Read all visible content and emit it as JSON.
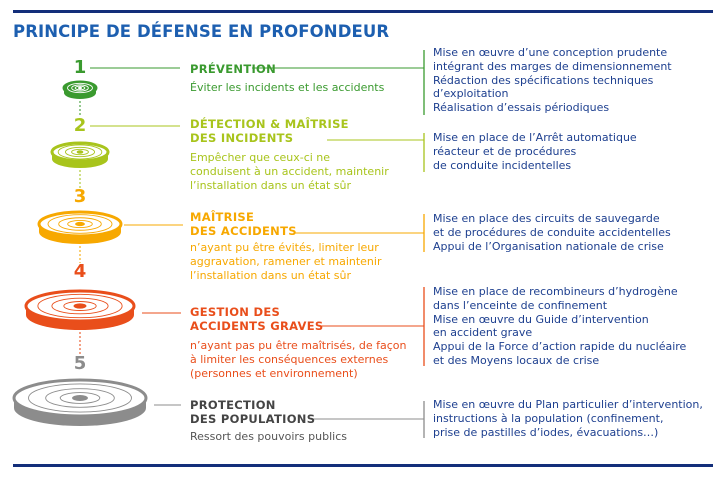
{
  "title": "PRINCIPE DE DÉFENSE EN PROFONDEUR",
  "levels": [
    {
      "number": "1",
      "color": "#3a9a2f",
      "title_lines": [
        "PRÉVENTION"
      ],
      "description_lines": [
        "Éviter les incidents et les accidents"
      ],
      "desc_color": "#3a9a2f",
      "measures": [
        "Mise en œuvre d’une conception prudente",
        "intégrant des marges de dimensionnement",
        "Rédaction des spécifications techniques",
        "d’exploitation",
        "Réalisation d’essais périodiques"
      ]
    },
    {
      "number": "2",
      "color": "#a8c41c",
      "title_lines": [
        "DÉTECTION & MAÎTRISE",
        "DES INCIDENTS"
      ],
      "description_lines": [
        "Empêcher que ceux-ci ne",
        "conduisent à un accident, maintenir",
        "l’installation dans un état sûr"
      ],
      "desc_color": "#a8c41c",
      "measures": [
        "Mise en place de l’Arrêt automatique",
        "réacteur et de procédures",
        "de conduite incidentelles"
      ]
    },
    {
      "number": "3",
      "color": "#f7a800",
      "title_lines": [
        "MAÎTRISE",
        "DES ACCIDENTS"
      ],
      "description_lines": [
        "n’ayant pu être évités, limiter leur",
        "aggravation, ramener et maintenir",
        "l’installation dans un état sûr"
      ],
      "desc_color": "#f7a800",
      "measures": [
        "Mise en place des circuits de sauvegarde",
        "et de procédures de conduite accidentelles",
        "Appui de l’Organisation nationale de crise"
      ]
    },
    {
      "number": "4",
      "color": "#e94e1b",
      "title_lines": [
        "GESTION DES",
        "ACCIDENTS GRAVES"
      ],
      "description_lines": [
        "n’ayant pas pu être maîtrisés, de façon",
        "à limiter les conséquences externes",
        "(personnes et environnement)"
      ],
      "desc_color": "#e94e1b",
      "measures": [
        "Mise en place de recombineurs d’hydrogène",
        "dans l’enceinte de confinement",
        "Mise en œuvre du Guide d’intervention",
        "en accident grave",
        "Appui de la Force d’action rapide du nucléaire",
        "et des Moyens locaux de crise"
      ]
    },
    {
      "number": "5",
      "color": "#8c8c8c",
      "title_lines": [
        "PROTECTION",
        "DES POPULATIONS"
      ],
      "description_lines": [
        "Ressort des pouvoirs publics"
      ],
      "desc_color": "#555555",
      "title_color": "#444444",
      "measures": [
        "Mise en œuvre du Plan particulier d’intervention,",
        "instructions à la population (confinement,",
        "prise de pastilles d’iodes, évacuations…)"
      ]
    }
  ]
}
